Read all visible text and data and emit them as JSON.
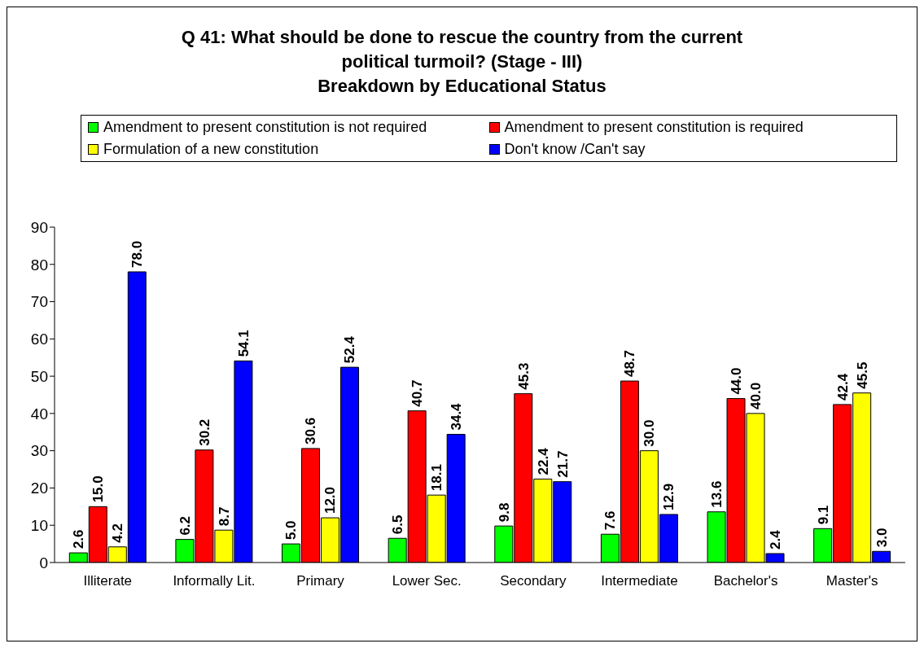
{
  "chart_data": {
    "type": "bar",
    "title": "Q 41: What should be done to rescue the country from the current political turmoil? (Stage - III)\nBreakdown by Educational Status",
    "categories": [
      "Illiterate",
      "Informally Lit.",
      "Primary",
      "Lower Sec.",
      "Secondary",
      "Intermediate",
      "Bachelor's",
      "Master's"
    ],
    "series": [
      {
        "name": "Amendment to present constitution is not required",
        "color": "#00ff00",
        "values": [
          2.6,
          6.2,
          5.0,
          6.5,
          9.8,
          7.6,
          13.6,
          9.1
        ],
        "value_labels": [
          "2.6",
          "6.2",
          "5.0",
          "6.5",
          "9.8",
          "7.6",
          "13.6",
          "9.1"
        ]
      },
      {
        "name": "Amendment to present constitution is required",
        "color": "#ff0000",
        "values": [
          15.0,
          30.2,
          30.6,
          40.7,
          45.3,
          48.7,
          44.0,
          42.4
        ],
        "value_labels": [
          "15.0",
          "30.2",
          "30.6",
          "40.7",
          "45.3",
          "48.7",
          "44.0",
          "42.4"
        ]
      },
      {
        "name": "Formulation of a new  constitution",
        "color": "#ffff00",
        "values": [
          4.2,
          8.7,
          12.0,
          18.1,
          22.4,
          30.0,
          40.0,
          45.5
        ],
        "value_labels": [
          "4.2",
          "8.7",
          "12.0",
          "18.1",
          "22.4",
          "30.0",
          "40.0",
          "45.5"
        ]
      },
      {
        "name": "Don't know /Can't say",
        "color": "#0000ff",
        "values": [
          78.0,
          54.1,
          52.4,
          34.4,
          21.7,
          12.9,
          2.4,
          3.0
        ],
        "value_labels": [
          "78.0",
          "54.1",
          "52.4",
          "34.4",
          "21.7",
          "12.9",
          "2.4",
          "3.0"
        ]
      }
    ],
    "ylim": [
      0,
      90
    ],
    "yticks": [
      0,
      10,
      20,
      30,
      40,
      50,
      60,
      70,
      80,
      90
    ],
    "grid": false,
    "legend": "top"
  }
}
